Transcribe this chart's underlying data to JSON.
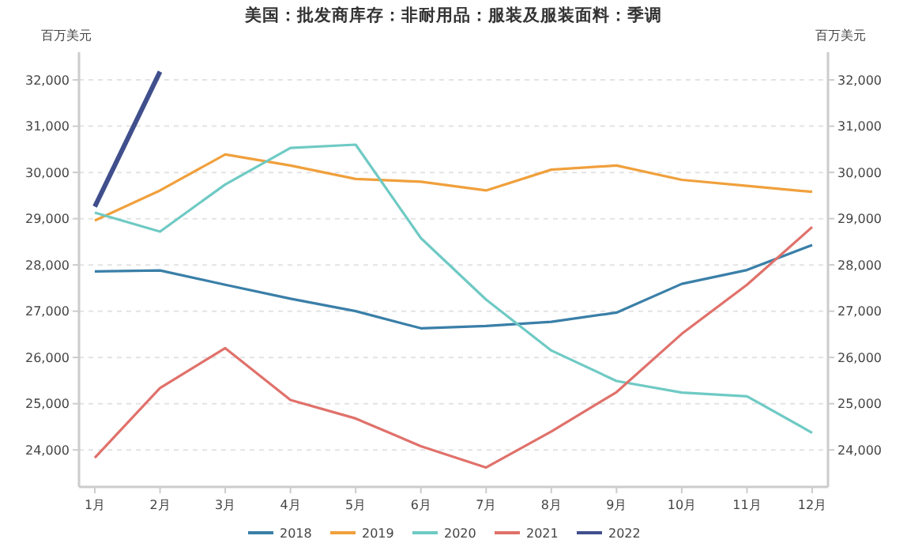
{
  "chart_data": {
    "type": "line",
    "title": "美国：批发商库存：非耐用品：服装及服装面料：季调",
    "ylabel": "百万美元",
    "y2label": "百万美元",
    "categories": [
      "1月",
      "2月",
      "3月",
      "4月",
      "5月",
      "6月",
      "7月",
      "8月",
      "9月",
      "10月",
      "11月",
      "12月"
    ],
    "series": [
      {
        "name": "2018",
        "color": "#3a7fa8",
        "values": [
          27860,
          27880,
          27570,
          27270,
          27000,
          26630,
          26680,
          26770,
          26970,
          27590,
          27890,
          28430
        ]
      },
      {
        "name": "2019",
        "color": "#f0a03c",
        "values": [
          28960,
          29610,
          30390,
          30150,
          29860,
          29800,
          29610,
          30060,
          30150,
          29840,
          29710,
          29580
        ]
      },
      {
        "name": "2020",
        "color": "#6fcac4",
        "values": [
          29130,
          28720,
          29740,
          30530,
          30600,
          28580,
          27250,
          26150,
          25490,
          25240,
          25160,
          24370
        ]
      },
      {
        "name": "2021",
        "color": "#e0716b",
        "values": [
          23830,
          25340,
          26200,
          25080,
          24680,
          24080,
          23620,
          24400,
          25250,
          26510,
          27570,
          28820
        ]
      },
      {
        "name": "2022",
        "color": "#404f8c",
        "values": [
          29260,
          32180,
          null,
          null,
          null,
          null,
          null,
          null,
          null,
          null,
          null,
          null
        ]
      }
    ],
    "ylim": [
      23200,
      32600
    ],
    "yticks": [
      {
        "value": 24000,
        "label": "24,000"
      },
      {
        "value": 25000,
        "label": "25,000"
      },
      {
        "value": 26000,
        "label": "26,000"
      },
      {
        "value": 27000,
        "label": "27,000"
      },
      {
        "value": 28000,
        "label": "28,000"
      },
      {
        "value": 29000,
        "label": "29,000"
      },
      {
        "value": 30000,
        "label": "30,000"
      },
      {
        "value": 31000,
        "label": "31,000"
      },
      {
        "value": 32000,
        "label": "32,000"
      }
    ],
    "y2lim": [
      23200,
      32600
    ],
    "y2ticks": [
      {
        "value": 24000,
        "label": "24,000"
      },
      {
        "value": 25000,
        "label": "25,000"
      },
      {
        "value": 26000,
        "label": "26,000"
      },
      {
        "value": 27000,
        "label": "27,000"
      },
      {
        "value": 28000,
        "label": "28,000"
      },
      {
        "value": 29000,
        "label": "29,000"
      },
      {
        "value": 30000,
        "label": "30,000"
      },
      {
        "value": 31000,
        "label": "31,000"
      },
      {
        "value": 32000,
        "label": "32,000"
      }
    ],
    "grid": "y",
    "legend": "bottom"
  }
}
